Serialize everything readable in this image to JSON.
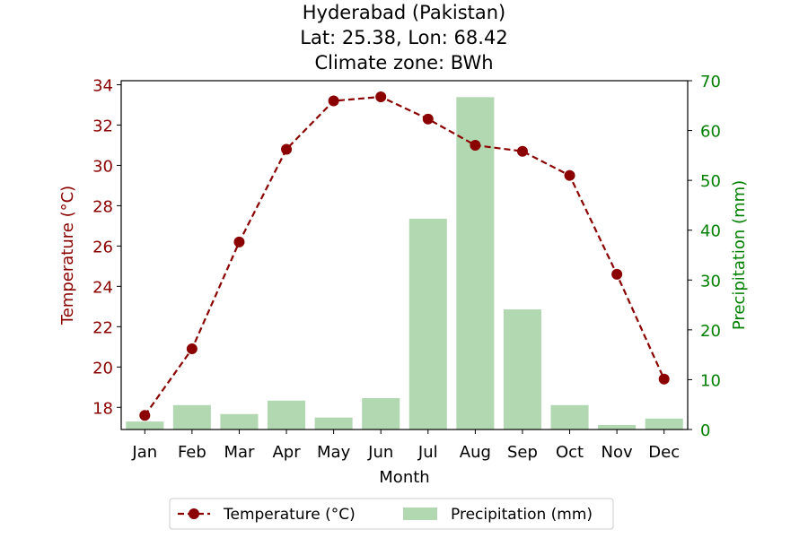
{
  "chart_data": {
    "type": "bar",
    "title": [
      "Hyderabad (Pakistan)",
      "Lat: 25.38, Lon: 68.42",
      "Climate zone: BWh"
    ],
    "xlabel": "Month",
    "ylabel_left": "Temperature (°C)",
    "ylabel_right": "Precipitation (mm)",
    "categories": [
      "Jan",
      "Feb",
      "Mar",
      "Apr",
      "May",
      "Jun",
      "Jul",
      "Aug",
      "Sep",
      "Oct",
      "Nov",
      "Dec"
    ],
    "series": [
      {
        "name": "Temperature (°C)",
        "type": "line",
        "axis": "left",
        "color": "#8b0000",
        "values": [
          17.6,
          20.9,
          26.2,
          30.8,
          33.2,
          33.4,
          32.3,
          31.0,
          30.7,
          29.5,
          24.6,
          19.4
        ]
      },
      {
        "name": "Precipitation (mm)",
        "type": "bar",
        "axis": "right",
        "color": "#b2d8b2",
        "values": [
          1.6,
          4.9,
          3.1,
          5.8,
          2.4,
          6.3,
          42.3,
          66.7,
          24.1,
          4.9,
          0.9,
          2.2
        ]
      }
    ],
    "ylim_left": [
      16.9,
      34.2
    ],
    "yticks_left": [
      18,
      20,
      22,
      24,
      26,
      28,
      30,
      32,
      34
    ],
    "ylim_right": [
      0,
      70
    ],
    "yticks_right": [
      0,
      10,
      20,
      30,
      40,
      50,
      60,
      70
    ],
    "left_axis_color": "#8b0000",
    "right_axis_color": "#008000",
    "legend_placement": "bottom-center",
    "grid": false
  }
}
